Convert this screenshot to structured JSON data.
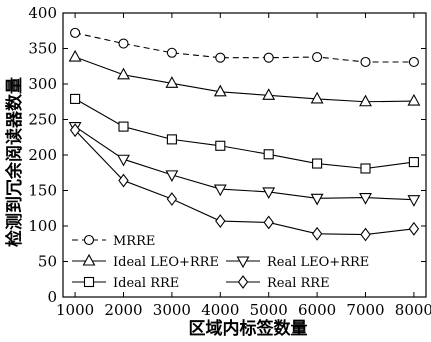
{
  "chart_data": {
    "type": "line",
    "title": "",
    "xlabel": "区域内标签数量",
    "ylabel": "检测到冗余阅读器数量",
    "x": [
      1000,
      2000,
      3000,
      4000,
      5000,
      6000,
      7000,
      8000
    ],
    "xlim": [
      750,
      8250
    ],
    "ylim": [
      0,
      400
    ],
    "yticks": [
      0,
      50,
      100,
      150,
      200,
      250,
      300,
      350,
      400
    ],
    "xticks": [
      1000,
      2000,
      3000,
      4000,
      5000,
      6000,
      7000,
      8000
    ],
    "grid": false,
    "legend_position": "bottom-left",
    "series": [
      {
        "name": "MRRE",
        "marker": "circle",
        "dashed": true,
        "values": [
          372,
          357,
          344,
          337,
          337,
          338,
          331,
          331
        ]
      },
      {
        "name": "Ideal LEO+RRE",
        "marker": "triangle-up",
        "dashed": false,
        "values": [
          338,
          313,
          301,
          289,
          284,
          279,
          275,
          276
        ]
      },
      {
        "name": "Real LEO+RRE",
        "marker": "triangle-down",
        "dashed": false,
        "values": [
          240,
          194,
          172,
          152,
          148,
          139,
          140,
          137
        ]
      },
      {
        "name": "Ideal RRE",
        "marker": "square",
        "dashed": false,
        "values": [
          279,
          240,
          222,
          213,
          201,
          188,
          181,
          190
        ]
      },
      {
        "name": "Real RRE",
        "marker": "diamond",
        "dashed": false,
        "values": [
          235,
          164,
          138,
          107,
          105,
          89,
          88,
          96
        ]
      }
    ]
  }
}
